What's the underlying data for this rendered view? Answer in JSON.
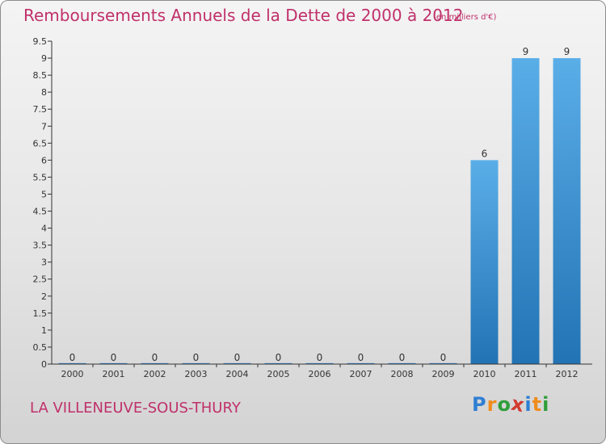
{
  "chart_data": {
    "type": "bar",
    "title": "Remboursements Annuels de la Dette de 2000 à 2012",
    "subtitle": "(en milliers d'€)",
    "xlabel": "",
    "ylabel": "",
    "categories": [
      "2000",
      "2001",
      "2002",
      "2003",
      "2004",
      "2005",
      "2006",
      "2007",
      "2008",
      "2009",
      "2010",
      "2011",
      "2012"
    ],
    "values": [
      0,
      0,
      0,
      0,
      0,
      0,
      0,
      0,
      0,
      0,
      6,
      9,
      9
    ],
    "data_labels": [
      "0",
      "0",
      "0",
      "0",
      "0",
      "0",
      "0",
      "0",
      "0",
      "0",
      "6",
      "9",
      "9"
    ],
    "ylim": [
      0,
      9.5
    ],
    "yticks": [
      0,
      0.5,
      1,
      1.5,
      2,
      2.5,
      3,
      3.5,
      4,
      4.5,
      5,
      5.5,
      6,
      6.5,
      7,
      7.5,
      8,
      8.5,
      9,
      9.5
    ],
    "ytick_labels": [
      "0",
      "0.5",
      "1",
      "1.5",
      "2",
      "2.5",
      "3",
      "3.5",
      "4",
      "4.5",
      "5",
      "5.5",
      "6",
      "6.5",
      "7",
      "7.5",
      "8",
      "8.5",
      "9",
      "9.5"
    ],
    "grid": false,
    "legend": "none",
    "colors": {
      "bar_light": "#5aaee8",
      "bar_dark": "#2273b4",
      "text": "#c0306a",
      "axis": "#333333"
    }
  },
  "footer": {
    "place_name": "LA VILLENEUVE-SOUS-THURY",
    "logo_letters": [
      "P",
      "r",
      "o",
      "x",
      "i",
      "t",
      "i"
    ],
    "logo_colors": [
      "#2f7fd3",
      "#f08c1e",
      "#2f9e3a",
      "#d23a2f",
      "#2f7fd3",
      "#f08c1e",
      "#2f9e3a"
    ]
  }
}
